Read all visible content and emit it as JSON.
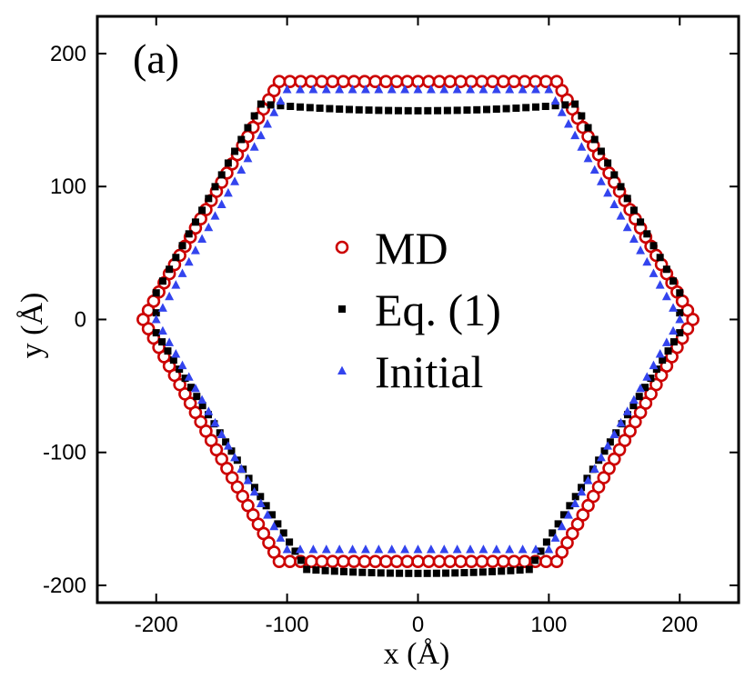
{
  "chart_data": {
    "type": "scatter",
    "panel_label": "(a)",
    "xlabel": "x (Å)",
    "ylabel": "y (Å)",
    "xlim": [
      -245,
      245
    ],
    "ylim": [
      -213,
      228
    ],
    "xticks": [
      -200,
      -100,
      0,
      100,
      200
    ],
    "yticks": [
      -200,
      -100,
      0,
      100,
      200
    ],
    "legend_position": "center",
    "colors": {
      "md": "#cc0000",
      "eq1": "#000000",
      "initial": "#3344ee"
    },
    "series": [
      {
        "name": "MD",
        "marker": "open-circle",
        "vertices": [
          [
            210,
            0
          ],
          [
            106,
            179
          ],
          [
            -106,
            179
          ],
          [
            -210,
            0
          ],
          [
            -106,
            -182
          ],
          [
            106,
            -182
          ],
          [
            210,
            0
          ]
        ],
        "points_per_edge": 26
      },
      {
        "name": "Eq. (1)",
        "marker": "filled-square",
        "vertices": [
          [
            200,
            20
          ],
          [
            120,
            162
          ],
          [
            -120,
            162
          ],
          [
            -200,
            20
          ],
          [
            -200,
            -10
          ],
          [
            -85,
            -188
          ],
          [
            85,
            -188
          ],
          [
            200,
            -10
          ]
        ],
        "mid_sag": [
          0,
          -5,
          0,
          0,
          0,
          -3,
          0,
          0
        ],
        "points_per_edge": [
          16,
          32,
          16,
          2,
          26,
          24,
          26,
          2
        ]
      },
      {
        "name": "Initial",
        "marker": "filled-triangle",
        "vertices": [
          [
            200,
            0
          ],
          [
            100,
            173
          ],
          [
            -100,
            173
          ],
          [
            -200,
            0
          ],
          [
            -100,
            -173
          ],
          [
            100,
            -173
          ],
          [
            200,
            0
          ]
        ],
        "points_per_edge": 20
      }
    ]
  },
  "legend": [
    {
      "key": "md",
      "label": "MD"
    },
    {
      "key": "eq1",
      "label": "Eq. (1)"
    },
    {
      "key": "initial",
      "label": "Initial"
    }
  ]
}
